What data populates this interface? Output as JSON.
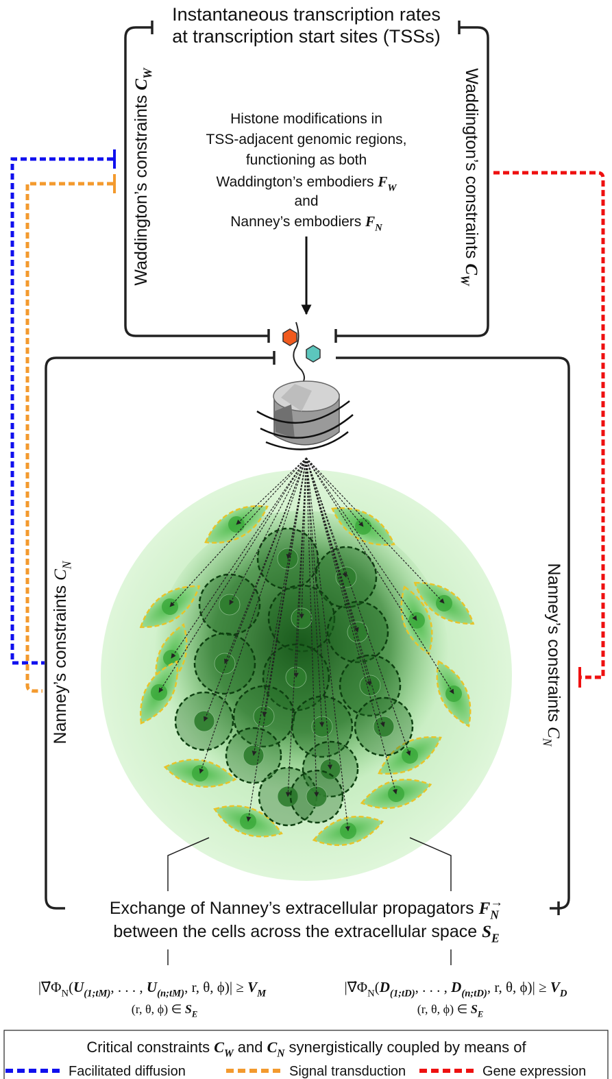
{
  "top_box": {
    "lines": [
      "Instantaneous transcription rates",
      "at transcription start sites (TSSs)"
    ]
  },
  "waddington_left": [
    {
      "t": "Waddington’s constraints ",
      "s": ""
    },
    {
      "t": "C",
      "s": "m"
    },
    {
      "t": "W",
      "s": "ms"
    }
  ],
  "waddington_right": [
    {
      "t": "Waddington’s constraints ",
      "s": ""
    },
    {
      "t": "C",
      "s": "m"
    },
    {
      "t": "W",
      "s": "ms"
    }
  ],
  "histone": {
    "lines": [
      "Histone modifications in",
      "TSS-adjacent genomic regions,",
      "functioning as both"
    ],
    "embodier_w": [
      {
        "t": "Waddington’s embodiers ",
        "s": ""
      },
      {
        "t": "F",
        "s": "m"
      },
      {
        "t": "W",
        "s": "ms"
      }
    ],
    "and": "and",
    "embodier_n": [
      {
        "t": "Nanney’s embodiers ",
        "s": ""
      },
      {
        "t": "F",
        "s": "m"
      },
      {
        "t": "N",
        "s": "ms"
      }
    ]
  },
  "nanney_left": [
    {
      "t": "Nanney’s constraints ",
      "s": ""
    },
    {
      "t": "C",
      "s": "mi"
    },
    {
      "t": "N",
      "s": "mis"
    }
  ],
  "nanney_right": [
    {
      "t": "Nanney’s constraints ",
      "s": ""
    },
    {
      "t": "C",
      "s": "mi"
    },
    {
      "t": "N",
      "s": "mis"
    }
  ],
  "exchange": {
    "line1": [
      {
        "t": "Exchange of Nanney’s extracellular propagators ",
        "s": ""
      },
      {
        "t": "F",
        "s": "m"
      },
      {
        "t": "N",
        "s": "ms"
      },
      {
        "t": "→",
        "s": "sup"
      }
    ],
    "line2": [
      {
        "t": "between the cells across the extracellular space ",
        "s": ""
      },
      {
        "t": "S",
        "s": "m"
      },
      {
        "t": "E",
        "s": "ms"
      }
    ]
  },
  "formulas": [
    {
      "expr": [
        {
          "t": "|∇⃗Φ",
          "s": "r"
        },
        {
          "t": "N",
          "s": "rs"
        },
        {
          "t": "(",
          "s": "r"
        },
        {
          "t": "U",
          "s": "m"
        },
        {
          "t": "(1;tM)",
          "s": "ms"
        },
        {
          "t": ", . . . , ",
          "s": "r"
        },
        {
          "t": "U",
          "s": "m"
        },
        {
          "t": "(n;tM)",
          "s": "ms"
        },
        {
          "t": ", r, θ, ϕ)| ≥ ",
          "s": "r"
        },
        {
          "t": "V",
          "s": "m"
        },
        {
          "t": "M",
          "s": "ms"
        }
      ],
      "domain": [
        {
          "t": "(r, θ, ϕ) ∈ ",
          "s": "r"
        },
        {
          "t": "S",
          "s": "m"
        },
        {
          "t": "E",
          "s": "ms"
        }
      ]
    },
    {
      "expr": [
        {
          "t": "|∇⃗Φ",
          "s": "r"
        },
        {
          "t": "N",
          "s": "rs"
        },
        {
          "t": "(",
          "s": "r"
        },
        {
          "t": "D",
          "s": "m"
        },
        {
          "t": "(1;tD)",
          "s": "ms"
        },
        {
          "t": ", . . . , ",
          "s": "r"
        },
        {
          "t": "D",
          "s": "m"
        },
        {
          "t": "(n;tD)",
          "s": "ms"
        },
        {
          "t": ", r, θ, ϕ)| ≥ ",
          "s": "r"
        },
        {
          "t": "V",
          "s": "m"
        },
        {
          "t": "D",
          "s": "ms"
        }
      ],
      "domain": [
        {
          "t": "(r, θ, ϕ) ∈ ",
          "s": "r"
        },
        {
          "t": "S",
          "s": "m"
        },
        {
          "t": "E",
          "s": "ms"
        }
      ]
    }
  ],
  "legend": {
    "title": [
      {
        "t": "Critical constraints ",
        "s": ""
      },
      {
        "t": "C",
        "s": "m"
      },
      {
        "t": "W",
        "s": "ms"
      },
      {
        "t": " and ",
        "s": ""
      },
      {
        "t": "C",
        "s": "m"
      },
      {
        "t": "N",
        "s": "ms"
      },
      {
        "t": " synergistically coupled by means of",
        "s": ""
      }
    ],
    "items": [
      {
        "label": "Facilitated diffusion",
        "color": "#1010ee"
      },
      {
        "label": "Signal transduction",
        "color": "#f39a2e"
      },
      {
        "label": "Gene expression",
        "color": "#ee1010"
      }
    ]
  }
}
